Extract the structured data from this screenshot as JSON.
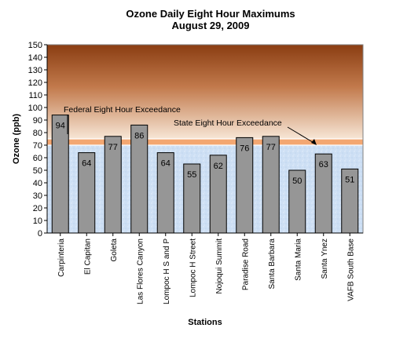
{
  "chart_data": {
    "type": "bar",
    "title": "Ozone Daily  Eight Hour Maximums",
    "subtitle": "August 29, 2009",
    "xlabel": "Stations",
    "ylabel": "Ozone (ppb)",
    "ylim": [
      0,
      150
    ],
    "ytick_step": 10,
    "categories": [
      "Carpinteria",
      "El Capitan",
      "Goleta",
      "Las Flores Canyon",
      "Lompoc H S and P",
      "Lompoc H Street",
      "Nojoqui Summit",
      "Paradise Road",
      "Santa Barbara",
      "Santa Maria",
      "Santa Ynez",
      "VAFB South Base"
    ],
    "values": [
      94,
      64,
      77,
      86,
      64,
      55,
      62,
      76,
      77,
      50,
      63,
      51
    ],
    "thresholds": [
      {
        "label": "Federal Eight Hour Exceedance",
        "value": 75
      },
      {
        "label": "State Eight Hour Exceedance",
        "value": 70
      }
    ],
    "colors": {
      "bar": "#969696",
      "background_low": "#cfe0f5",
      "background_high_top": "#8a3d12",
      "background_high_bottom": "#f6e3d2",
      "band": "#f3a772"
    },
    "grid": false,
    "legend": "none"
  }
}
